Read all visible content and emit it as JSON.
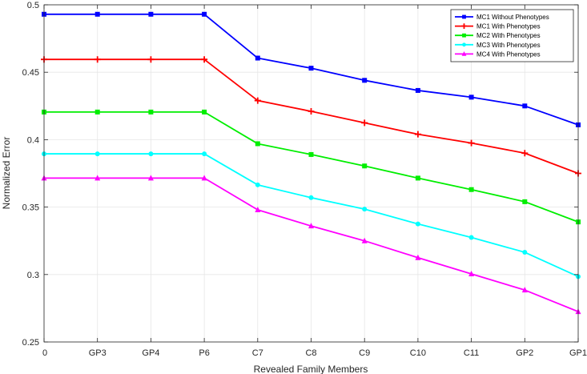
{
  "chart_data": {
    "type": "line",
    "title": "",
    "xlabel": "Revealed Family Members",
    "ylabel": "Normalized Error",
    "categories": [
      "0",
      "GP3",
      "GP4",
      "P6",
      "C7",
      "C8",
      "C9",
      "C10",
      "C11",
      "GP2",
      "GP1"
    ],
    "ylim": [
      0.25,
      0.5
    ],
    "yticks": [
      0.25,
      0.3,
      0.35,
      0.4,
      0.45,
      0.5
    ],
    "ytick_labels": [
      "0.25",
      "0.3",
      "0.35",
      "0.4",
      "0.45",
      "0.5"
    ],
    "grid": true,
    "legend_position": "top-right",
    "series": [
      {
        "name": "MC1 Without Phenotypes",
        "color": "#0000ff",
        "marker": "square",
        "values": [
          0.493,
          0.493,
          0.493,
          0.493,
          0.4605,
          0.453,
          0.444,
          0.4365,
          0.4315,
          0.425,
          0.411
        ]
      },
      {
        "name": "MC1 With Phenotypes",
        "color": "#ff0000",
        "marker": "plus",
        "values": [
          0.4595,
          0.4595,
          0.4595,
          0.4595,
          0.429,
          0.421,
          0.4125,
          0.404,
          0.3975,
          0.39,
          0.375
        ]
      },
      {
        "name": "MC2 With Phenotypes",
        "color": "#00ee00",
        "marker": "square",
        "values": [
          0.4205,
          0.4205,
          0.4205,
          0.4205,
          0.397,
          0.389,
          0.3805,
          0.3715,
          0.363,
          0.354,
          0.339
        ]
      },
      {
        "name": "MC3 With Phenotypes",
        "color": "#00ffff",
        "marker": "circle",
        "values": [
          0.3895,
          0.3895,
          0.3895,
          0.3895,
          0.3665,
          0.357,
          0.3485,
          0.3375,
          0.3275,
          0.3165,
          0.2985
        ]
      },
      {
        "name": "MC4 With Phenotypes",
        "color": "#ff00ff",
        "marker": "triangle",
        "values": [
          0.3715,
          0.3715,
          0.3715,
          0.3715,
          0.348,
          0.336,
          0.325,
          0.3125,
          0.3005,
          0.2885,
          0.2725
        ]
      }
    ]
  }
}
